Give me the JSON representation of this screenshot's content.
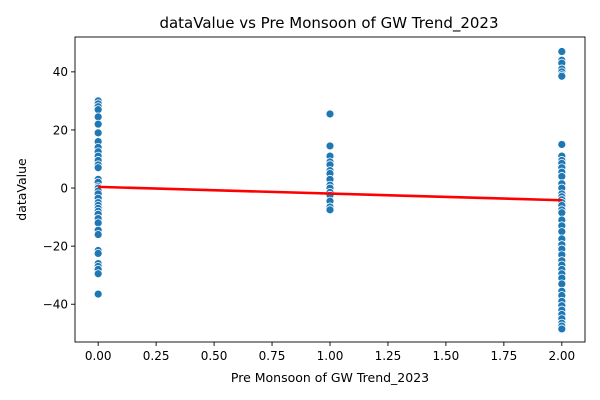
{
  "chart_data": {
    "type": "scatter",
    "title": "dataValue vs Pre Monsoon of GW Trend_2023",
    "xlabel": "Pre Monsoon of GW Trend_2023",
    "ylabel": "dataValue",
    "xlim": [
      -0.1,
      2.1
    ],
    "ylim": [
      -53,
      52
    ],
    "xticks": [
      0.0,
      0.25,
      0.5,
      0.75,
      1.0,
      1.25,
      1.5,
      1.75,
      2.0
    ],
    "xtick_labels": [
      "0.00",
      "0.25",
      "0.50",
      "0.75",
      "1.00",
      "1.25",
      "1.50",
      "1.75",
      "2.00"
    ],
    "yticks": [
      -40,
      -20,
      0,
      20,
      40
    ],
    "ytick_labels": [
      "−40",
      "−20",
      "0",
      "20",
      "40"
    ],
    "grid": false,
    "colors": {
      "points": "#1f77b4",
      "regression": "#ff0000"
    },
    "series": [
      {
        "x": 0,
        "values": [
          30,
          29,
          28,
          27,
          24.5,
          22,
          19,
          16,
          14,
          12.5,
          11,
          9.5,
          8,
          7,
          3,
          2,
          0.5,
          0,
          -1,
          -2,
          -3.5,
          -5,
          -6,
          -7,
          -8,
          -9,
          -10.5,
          -12,
          -14.5,
          -16,
          -21.5,
          -22.5,
          -26,
          -27,
          -28,
          -29.5,
          -36.5
        ]
      },
      {
        "x": 1,
        "values": [
          25.5,
          14.5,
          11,
          9,
          8,
          6,
          5,
          3,
          1,
          0,
          -1.5,
          -2.5,
          -4.5,
          -6.5,
          -7.5
        ]
      },
      {
        "x": 2,
        "values": [
          47,
          44,
          43,
          41,
          40,
          39,
          38.5,
          15,
          11,
          9.5,
          8.5,
          7,
          5.5,
          4,
          1.5,
          0,
          -2,
          -3,
          -4,
          -5,
          -6,
          -7.5,
          -8.5,
          -11,
          -13,
          -15,
          -17.5,
          -19.5,
          -21,
          -23,
          -25,
          -26.5,
          -28,
          -29.5,
          -31,
          -33,
          -35.5,
          -37,
          -39,
          -40.5,
          -42,
          -43.5,
          -45,
          -46.5,
          -47.5,
          -48.5
        ]
      }
    ],
    "regression": {
      "x": [
        0,
        2
      ],
      "y": [
        0.4,
        -4.2
      ]
    }
  }
}
